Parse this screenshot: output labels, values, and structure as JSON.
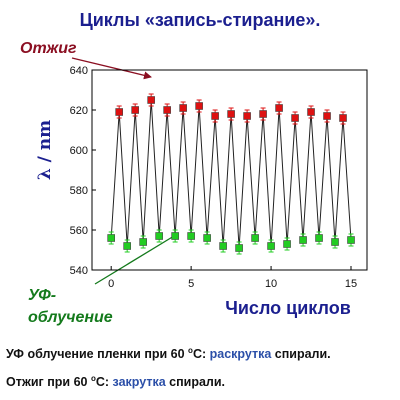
{
  "chart_data": {
    "type": "line",
    "title": "Циклы «запись-стирание».",
    "xlabel": "Число циклов",
    "ylabel": "λ / nm",
    "xlim": [
      -1.2,
      16
    ],
    "ylim": [
      540,
      640
    ],
    "xticks": [
      0,
      5,
      10,
      15
    ],
    "yticks": [
      540,
      560,
      580,
      600,
      620,
      640
    ],
    "x": [
      0.0,
      0.5,
      1.0,
      1.5,
      2.0,
      2.5,
      3.0,
      3.5,
      4.0,
      4.5,
      5.0,
      5.5,
      6.0,
      6.5,
      7.0,
      7.5,
      8.0,
      8.5,
      9.0,
      9.5,
      10.0,
      10.5,
      11.0,
      11.5,
      12.0,
      12.5,
      13.0,
      13.5,
      14.0,
      14.5,
      15.0
    ],
    "y": [
      556,
      619,
      552,
      620,
      554,
      625,
      557,
      620,
      557,
      621,
      557,
      622,
      556,
      617,
      552,
      618,
      551,
      617,
      556,
      618,
      552,
      621,
      553,
      616,
      555,
      619,
      556,
      617,
      554,
      616,
      555
    ],
    "series": [
      {
        "name": "Отжиг",
        "color": "#dd1111",
        "x": [
          0.5,
          1.5,
          2.5,
          3.5,
          4.5,
          5.5,
          6.5,
          7.5,
          8.5,
          9.5,
          10.5,
          11.5,
          12.5,
          13.5,
          14.5
        ],
        "values": [
          619,
          620,
          625,
          620,
          621,
          622,
          617,
          618,
          617,
          618,
          621,
          616,
          619,
          617,
          616
        ]
      },
      {
        "name": "УФ-облучение",
        "color": "#22cc22",
        "x": [
          0,
          1,
          2,
          3,
          4,
          5,
          6,
          7,
          8,
          9,
          10,
          11,
          12,
          13,
          14,
          15
        ],
        "values": [
          556,
          552,
          554,
          557,
          557,
          557,
          556,
          552,
          551,
          556,
          552,
          553,
          555,
          556,
          554,
          555
        ]
      }
    ],
    "error_bar": 3,
    "line_color": "#222222"
  },
  "annotations": {
    "anneal": "Отжиг",
    "uv_line1": "УФ-",
    "uv_line2": "облучение"
  },
  "captions": {
    "line1": {
      "part1": "УФ облучение пленки при 60 ",
      "degree": "o",
      "part2": "С: ",
      "keyword": "раскрутка",
      "part3": " спирали."
    },
    "line2": {
      "part1": "Отжиг при 60 ",
      "degree": "o",
      "part2": "С: ",
      "keyword": "закрутка",
      "part3": " спирали."
    }
  },
  "colors": {
    "title": "#1b1f8f",
    "anneal_annotation": "#8b0f22",
    "uv_annotation": "#147a1c"
  }
}
